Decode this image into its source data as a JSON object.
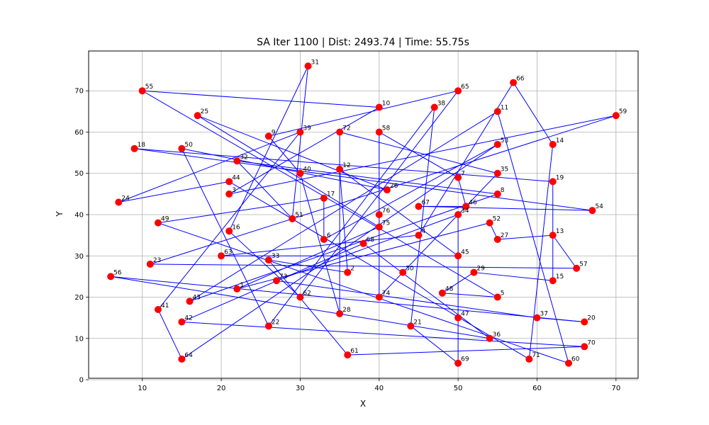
{
  "chart_data": {
    "type": "scatter",
    "title": "SA Iter 1100 | Dist: 2493.74 | Time: 55.75s",
    "xlabel": "X",
    "ylabel": "Y",
    "xlim": [
      3.2,
      72.8
    ],
    "ylim": [
      0.35,
      79.65
    ],
    "xticks": [
      10,
      20,
      30,
      40,
      50,
      60,
      70
    ],
    "yticks": [
      0,
      10,
      20,
      30,
      40,
      50,
      60,
      70
    ],
    "grid": true,
    "point_color": "#ff0000",
    "line_color": "#0000ff",
    "points": [
      {
        "id": 1,
        "x": 22,
        "y": 22
      },
      {
        "id": 2,
        "x": 36,
        "y": 26
      },
      {
        "id": 3,
        "x": 21,
        "y": 45
      },
      {
        "id": 4,
        "x": 45,
        "y": 35
      },
      {
        "id": 5,
        "x": 55,
        "y": 20
      },
      {
        "id": 6,
        "x": 33,
        "y": 34
      },
      {
        "id": 7,
        "x": 50,
        "y": 49
      },
      {
        "id": 8,
        "x": 55,
        "y": 45
      },
      {
        "id": 9,
        "x": 26,
        "y": 59
      },
      {
        "id": 10,
        "x": 40,
        "y": 66
      },
      {
        "id": 11,
        "x": 55,
        "y": 65
      },
      {
        "id": 12,
        "x": 35,
        "y": 51
      },
      {
        "id": 13,
        "x": 62,
        "y": 35
      },
      {
        "id": 14,
        "x": 62,
        "y": 57
      },
      {
        "id": 15,
        "x": 62,
        "y": 24
      },
      {
        "id": 16,
        "x": 21,
        "y": 36
      },
      {
        "id": 17,
        "x": 33,
        "y": 44
      },
      {
        "id": 18,
        "x": 9,
        "y": 56
      },
      {
        "id": 19,
        "x": 62,
        "y": 48
      },
      {
        "id": 20,
        "x": 66,
        "y": 14
      },
      {
        "id": 21,
        "x": 44,
        "y": 13
      },
      {
        "id": 22,
        "x": 26,
        "y": 13
      },
      {
        "id": 23,
        "x": 11,
        "y": 28
      },
      {
        "id": 24,
        "x": 7,
        "y": 43
      },
      {
        "id": 25,
        "x": 17,
        "y": 64
      },
      {
        "id": 26,
        "x": 41,
        "y": 46
      },
      {
        "id": 27,
        "x": 55,
        "y": 34
      },
      {
        "id": 28,
        "x": 35,
        "y": 16
      },
      {
        "id": 29,
        "x": 52,
        "y": 26
      },
      {
        "id": 30,
        "x": 43,
        "y": 26
      },
      {
        "id": 31,
        "x": 31,
        "y": 76
      },
      {
        "id": 32,
        "x": 22,
        "y": 53
      },
      {
        "id": 33,
        "x": 26,
        "y": 29
      },
      {
        "id": 34,
        "x": 50,
        "y": 40
      },
      {
        "id": 35,
        "x": 55,
        "y": 50
      },
      {
        "id": 36,
        "x": 54,
        "y": 10
      },
      {
        "id": 37,
        "x": 60,
        "y": 15
      },
      {
        "id": 38,
        "x": 47,
        "y": 66
      },
      {
        "id": 39,
        "x": 30,
        "y": 60
      },
      {
        "id": 40,
        "x": 30,
        "y": 50
      },
      {
        "id": 41,
        "x": 12,
        "y": 17
      },
      {
        "id": 42,
        "x": 15,
        "y": 14
      },
      {
        "id": 43,
        "x": 16,
        "y": 19
      },
      {
        "id": 44,
        "x": 21,
        "y": 48
      },
      {
        "id": 45,
        "x": 50,
        "y": 30
      },
      {
        "id": 46,
        "x": 51,
        "y": 42
      },
      {
        "id": 47,
        "x": 50,
        "y": 15
      },
      {
        "id": 48,
        "x": 48,
        "y": 21
      },
      {
        "id": 49,
        "x": 12,
        "y": 38
      },
      {
        "id": 50,
        "x": 15,
        "y": 56
      },
      {
        "id": 51,
        "x": 29,
        "y": 39
      },
      {
        "id": 52,
        "x": 54,
        "y": 38
      },
      {
        "id": 53,
        "x": 55,
        "y": 57
      },
      {
        "id": 54,
        "x": 67,
        "y": 41
      },
      {
        "id": 55,
        "x": 10,
        "y": 70
      },
      {
        "id": 56,
        "x": 6,
        "y": 25
      },
      {
        "id": 57,
        "x": 65,
        "y": 27
      },
      {
        "id": 58,
        "x": 40,
        "y": 60
      },
      {
        "id": 59,
        "x": 70,
        "y": 64
      },
      {
        "id": 60,
        "x": 64,
        "y": 4
      },
      {
        "id": 61,
        "x": 36,
        "y": 6
      },
      {
        "id": 62,
        "x": 30,
        "y": 20
      },
      {
        "id": 63,
        "x": 20,
        "y": 30
      },
      {
        "id": 64,
        "x": 15,
        "y": 5
      },
      {
        "id": 65,
        "x": 50,
        "y": 70
      },
      {
        "id": 66,
        "x": 57,
        "y": 72
      },
      {
        "id": 67,
        "x": 45,
        "y": 42
      },
      {
        "id": 68,
        "x": 38,
        "y": 33
      },
      {
        "id": 69,
        "x": 50,
        "y": 4
      },
      {
        "id": 70,
        "x": 66,
        "y": 8
      },
      {
        "id": 71,
        "x": 59,
        "y": 5
      },
      {
        "id": 72,
        "x": 35,
        "y": 60
      },
      {
        "id": 73,
        "x": 27,
        "y": 24
      },
      {
        "id": 74,
        "x": 40,
        "y": 20
      },
      {
        "id": 75,
        "x": 40,
        "y": 37
      },
      {
        "id": 76,
        "x": 40,
        "y": 40
      }
    ],
    "tour": [
      14,
      66,
      4,
      63,
      45,
      12,
      2,
      33,
      61,
      70,
      42,
      68,
      36,
      56,
      20,
      37,
      73,
      34,
      47,
      69,
      21,
      38,
      22,
      50,
      26,
      25,
      75,
      1,
      52,
      27,
      13,
      57,
      23,
      59,
      3,
      10,
      55,
      5,
      48,
      29,
      15,
      19,
      18,
      54,
      67,
      46,
      7,
      58,
      76,
      74,
      30,
      35,
      72,
      28,
      40,
      9,
      65,
      62,
      16,
      31,
      51,
      32,
      8,
      43,
      11,
      60,
      49,
      17,
      6,
      53,
      64,
      41,
      39,
      24,
      44,
      71,
      14
    ]
  }
}
